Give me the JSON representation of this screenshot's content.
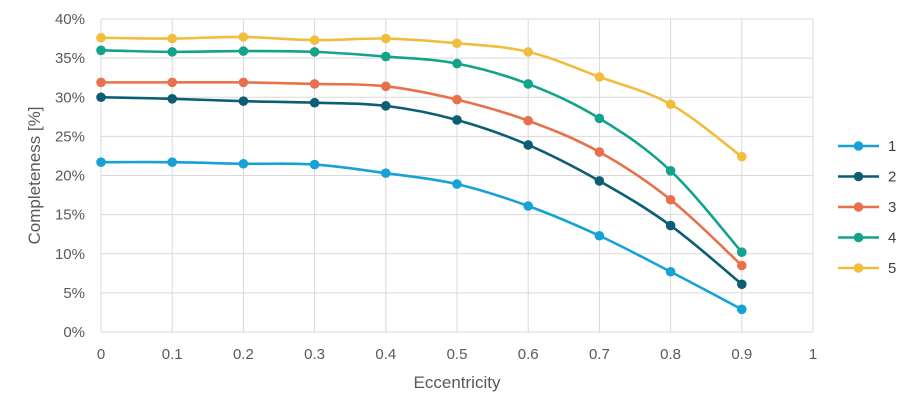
{
  "chart_data": {
    "type": "line",
    "xlabel": "Eccentricity",
    "ylabel": "Completeness [%]",
    "xlim": [
      0,
      1
    ],
    "ylim": [
      0,
      40
    ],
    "x_ticks": [
      "0",
      "0.1",
      "0.2",
      "0.3",
      "0.4",
      "0.5",
      "0.6",
      "0.7",
      "0.8",
      "0.9",
      "1"
    ],
    "y_ticks": [
      "0%",
      "5%",
      "10%",
      "15%",
      "20%",
      "25%",
      "30%",
      "35%",
      "40%"
    ],
    "grid": true,
    "legend_position": "right",
    "x": [
      0,
      0.1,
      0.2,
      0.3,
      0.4,
      0.5,
      0.6,
      0.7,
      0.8,
      0.9
    ],
    "series": [
      {
        "name": "1",
        "color": "#17a2d6",
        "values": [
          21.7,
          21.7,
          21.5,
          21.4,
          20.3,
          18.9,
          16.1,
          12.3,
          7.7,
          2.9
        ]
      },
      {
        "name": "2",
        "color": "#0b5e75",
        "values": [
          30.0,
          29.8,
          29.5,
          29.3,
          28.9,
          27.1,
          23.9,
          19.3,
          13.6,
          6.1
        ]
      },
      {
        "name": "3",
        "color": "#e8704a",
        "values": [
          31.9,
          31.9,
          31.9,
          31.7,
          31.4,
          29.7,
          27.0,
          23.0,
          16.9,
          8.5
        ]
      },
      {
        "name": "4",
        "color": "#13a38d",
        "values": [
          36.0,
          35.8,
          35.9,
          35.8,
          35.2,
          34.3,
          31.7,
          27.3,
          20.6,
          10.2
        ]
      },
      {
        "name": "5",
        "color": "#f2bc3c",
        "values": [
          37.6,
          37.5,
          37.7,
          37.3,
          37.5,
          36.9,
          35.8,
          32.6,
          29.1,
          22.4
        ]
      }
    ]
  }
}
